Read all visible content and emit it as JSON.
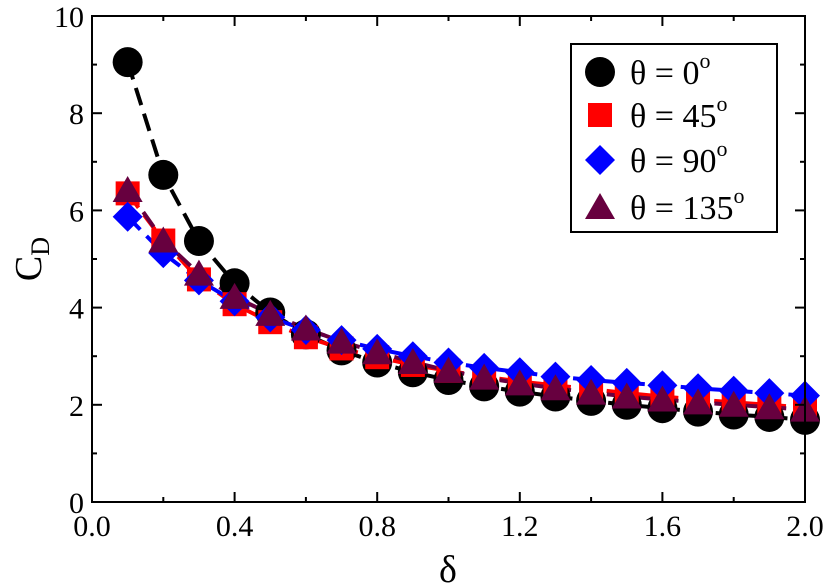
{
  "chart_data": {
    "type": "scatter",
    "title": "",
    "xlabel": "δ",
    "ylabel_main": "C",
    "ylabel_sub": "D",
    "xlim": [
      0.0,
      2.0
    ],
    "ylim": [
      0,
      10
    ],
    "x_ticks": [
      0.0,
      0.4,
      0.8,
      1.2,
      1.6,
      2.0
    ],
    "x_tick_labels": [
      "0.0",
      "0.4",
      "0.8",
      "1.2",
      "1.6",
      "2.0"
    ],
    "y_ticks": [
      0,
      2,
      4,
      6,
      8,
      10
    ],
    "y_tick_labels": [
      "0",
      "2",
      "4",
      "6",
      "8",
      "10"
    ],
    "grid": false,
    "legend_position": "top-right",
    "x": [
      0.1,
      0.2,
      0.3,
      0.4,
      0.5,
      0.6,
      0.7,
      0.8,
      0.9,
      1.0,
      1.1,
      1.2,
      1.3,
      1.4,
      1.5,
      1.6,
      1.7,
      1.8,
      1.9,
      2.0
    ],
    "series": [
      {
        "name": "θ = 0",
        "label_main": "θ = 0",
        "label_sup": "o",
        "marker": "circle",
        "color": "#000000",
        "line_style": "dashed",
        "values": [
          9.05,
          6.73,
          5.37,
          4.5,
          3.9,
          3.45,
          3.12,
          2.87,
          2.67,
          2.51,
          2.38,
          2.27,
          2.17,
          2.08,
          2.0,
          1.93,
          1.86,
          1.8,
          1.75,
          1.69
        ]
      },
      {
        "name": "θ = 45",
        "label_main": "θ = 45",
        "label_sup": "o",
        "marker": "square",
        "color": "#ff0000",
        "line_style": "dashed",
        "values": [
          6.35,
          5.38,
          4.58,
          4.07,
          3.7,
          3.39,
          3.16,
          2.98,
          2.82,
          2.7,
          2.58,
          2.48,
          2.4,
          2.32,
          2.24,
          2.17,
          2.11,
          2.05,
          2.0,
          1.94
        ]
      },
      {
        "name": "θ = 90",
        "label_main": "θ = 90",
        "label_sup": "o",
        "marker": "diamond",
        "color": "#0000ff",
        "line_style": "dashed",
        "values": [
          5.87,
          5.12,
          4.56,
          4.13,
          3.8,
          3.54,
          3.33,
          3.15,
          3.0,
          2.87,
          2.76,
          2.67,
          2.58,
          2.51,
          2.45,
          2.4,
          2.34,
          2.29,
          2.24,
          2.19
        ]
      },
      {
        "name": "θ = 135",
        "label_main": "θ = 135",
        "label_sup": "o",
        "marker": "triangle",
        "color": "#67003f",
        "line_style": "dashed",
        "values": [
          6.42,
          5.38,
          4.7,
          4.22,
          3.87,
          3.57,
          3.3,
          3.08,
          2.88,
          2.7,
          2.56,
          2.44,
          2.34,
          2.25,
          2.17,
          2.11,
          2.05,
          2.0,
          1.95,
          1.9
        ]
      }
    ]
  }
}
